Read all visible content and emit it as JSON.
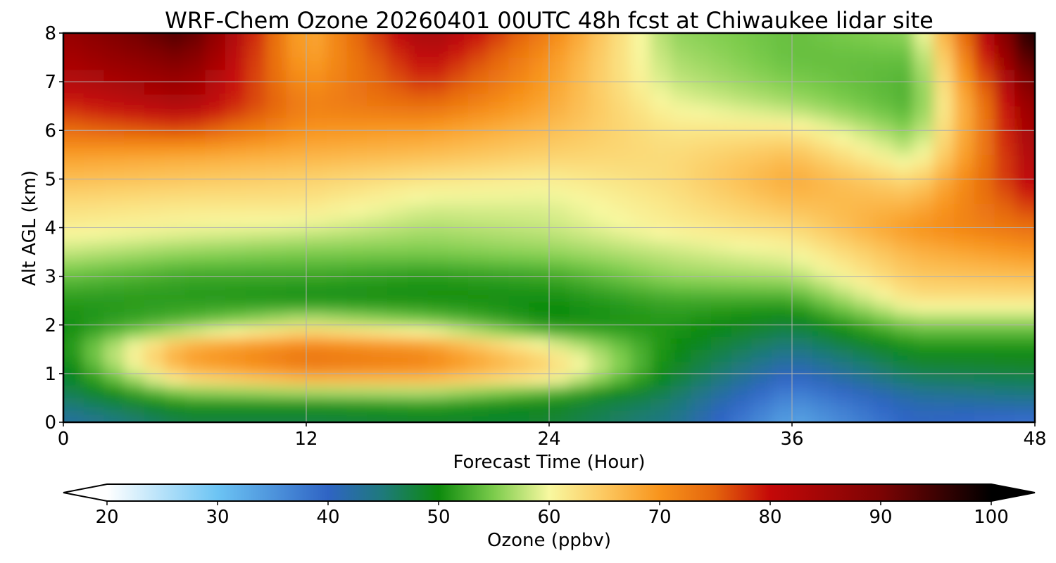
{
  "chart_data": {
    "type": "heatmap",
    "title": "WRF-Chem Ozone  20260401 00UTC 48h fcst at Chiwaukee lidar site",
    "xlabel": "Forecast Time (Hour)",
    "ylabel": "Alt AGL (km)",
    "xlim": [
      0,
      48
    ],
    "ylim": [
      0,
      8
    ],
    "x_ticks": [
      0,
      12,
      24,
      36,
      48
    ],
    "y_ticks": [
      0,
      1,
      2,
      3,
      4,
      5,
      6,
      7,
      8
    ],
    "grid": true,
    "colorbar": {
      "label": "Ozone  (ppbv)",
      "min": 20,
      "max": 100,
      "ticks": [
        20,
        30,
        40,
        50,
        60,
        70,
        80,
        90,
        100
      ],
      "extend": "both",
      "colors": {
        "c20": "#ffffff",
        "c30": "#6cc4f4",
        "c40": "#2f64c4",
        "c45": "#1e7a7a",
        "c50": "#0d8a0d",
        "c55": "#7ccc4c",
        "c60": "#f8f8a0",
        "c65": "#fcc860",
        "c70": "#f8941c",
        "c75": "#e4640c",
        "c80": "#c40808",
        "c90": "#7c0404",
        "c100": "#000000"
      }
    },
    "approx_profile_ppbv": {
      "altitudes_km": [
        0,
        0.5,
        1,
        1.5,
        2,
        2.5,
        3,
        3.5,
        4,
        4.5,
        5,
        5.5,
        6,
        6.5,
        7,
        7.5,
        8
      ],
      "hours": [
        0,
        6,
        12,
        18,
        24,
        30,
        36,
        42,
        48
      ],
      "values_by_hour": [
        [
          42,
          46,
          48,
          50,
          50,
          51,
          54,
          58,
          61,
          63,
          66,
          69,
          74,
          78,
          82,
          84,
          86
        ],
        [
          47,
          52,
          66,
          70,
          54,
          51,
          52,
          56,
          60,
          62,
          65,
          68,
          76,
          83,
          86,
          90,
          94
        ],
        [
          47,
          52,
          71,
          74,
          60,
          50,
          52,
          55,
          59,
          62,
          64,
          67,
          70,
          72,
          70,
          68,
          67
        ],
        [
          48,
          53,
          70,
          72,
          56,
          50,
          51,
          55,
          57,
          59,
          62,
          66,
          69,
          74,
          78,
          81,
          85
        ],
        [
          48,
          50,
          64,
          62,
          50,
          50,
          52,
          56,
          58,
          59,
          61,
          64,
          66,
          68,
          69,
          70,
          72
        ],
        [
          44,
          46,
          49,
          50,
          51,
          52,
          56,
          58,
          61,
          62,
          63,
          63,
          62,
          60,
          58,
          57,
          56
        ],
        [
          33,
          36,
          40,
          44,
          48,
          52,
          57,
          60,
          63,
          66,
          68,
          66,
          62,
          57,
          55,
          54,
          54
        ],
        [
          40,
          42,
          47,
          50,
          55,
          62,
          65,
          67,
          70,
          67,
          63,
          58,
          55,
          53,
          53,
          54,
          56
        ],
        [
          38,
          44,
          48,
          50,
          55,
          62,
          66,
          70,
          74,
          78,
          82,
          84,
          86,
          88,
          92,
          96,
          100
        ]
      ]
    }
  }
}
